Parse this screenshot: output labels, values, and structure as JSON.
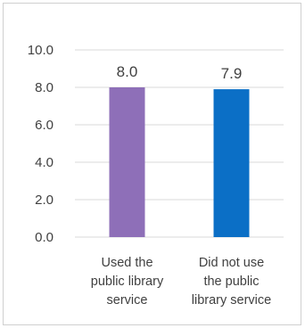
{
  "chart_data": {
    "type": "bar",
    "title": "",
    "xlabel": "",
    "ylabel": "",
    "ylim": [
      0,
      10
    ],
    "yticks": [
      "0.0",
      "2.0",
      "4.0",
      "6.0",
      "8.0",
      "10.0"
    ],
    "categories": [
      [
        "Used the",
        "public library",
        "service"
      ],
      [
        "Did not use",
        "the public",
        "library service"
      ]
    ],
    "values": [
      8.0,
      7.9
    ],
    "value_labels": [
      "8.0",
      "7.9"
    ],
    "colors": [
      "#8e6fb8",
      "#0b6fc6"
    ],
    "grid": true,
    "legend": "none"
  }
}
